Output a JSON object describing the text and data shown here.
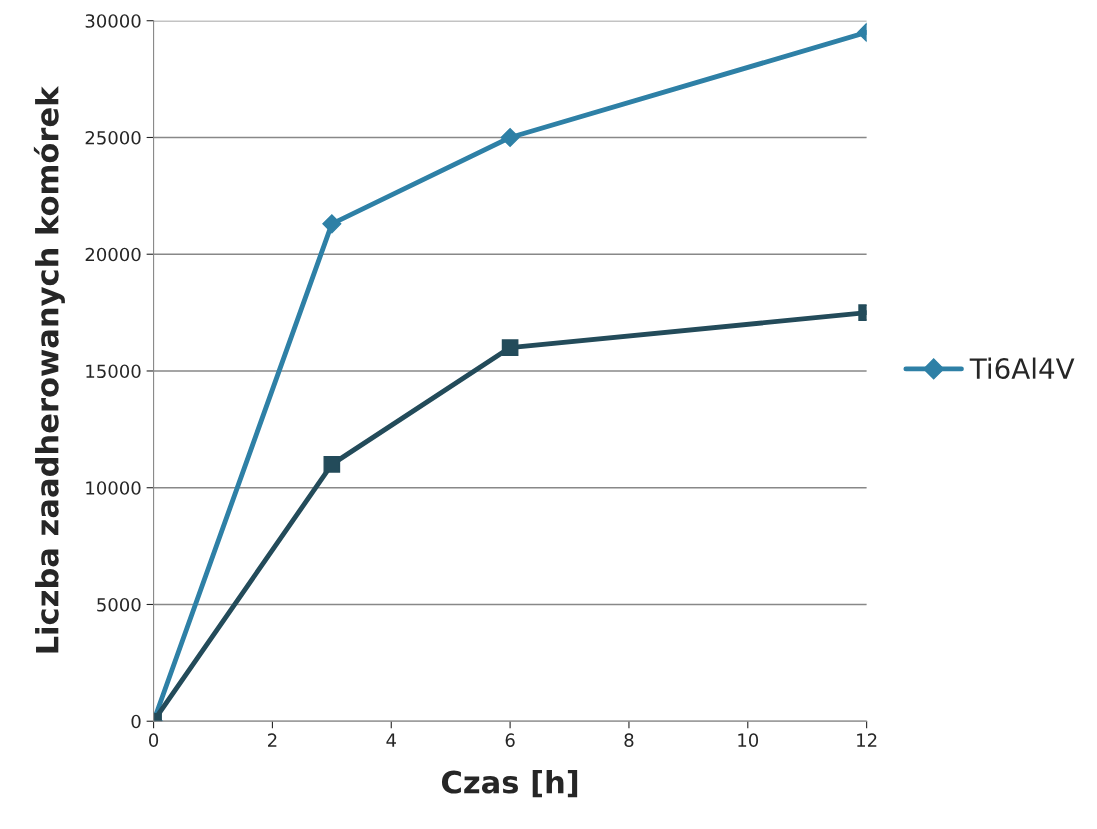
{
  "chart_data": {
    "type": "line",
    "xlabel": "Czas [h]",
    "ylabel": "Liczba zaadherowanych komórek",
    "x": [
      0,
      3,
      6,
      12
    ],
    "series": [
      {
        "name": "Ti6Al4V",
        "color": "#2e80a6",
        "values": [
          0,
          21300,
          25000,
          29500
        ],
        "marker": "diamond"
      },
      {
        "color": "#234b5a",
        "values": [
          0,
          11000,
          16000,
          17500
        ],
        "marker": "square"
      }
    ],
    "xlim": [
      0,
      12
    ],
    "xticks": [
      0,
      2,
      4,
      6,
      8,
      10,
      12
    ],
    "ylim": [
      0,
      30000
    ],
    "yticks": [
      0,
      5000,
      10000,
      15000,
      20000,
      25000,
      30000
    ],
    "grid": "y",
    "legend": "right"
  }
}
